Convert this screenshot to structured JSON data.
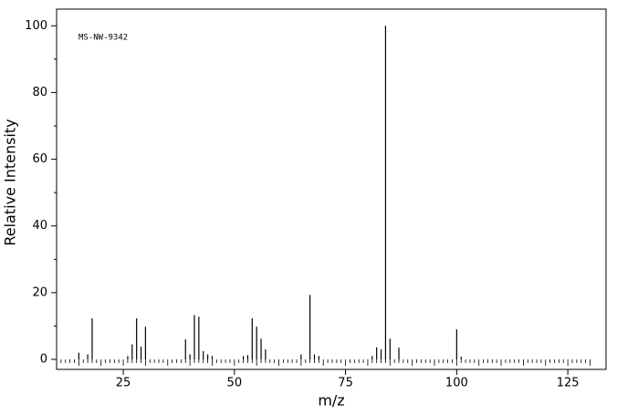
{
  "chart_data": {
    "type": "stem",
    "annotation": "MS-NW-9342",
    "xlabel": "m/z",
    "ylabel": "Relative Intensity",
    "x": [
      15,
      17,
      18,
      26,
      27,
      28,
      29,
      30,
      39,
      40,
      41,
      42,
      43,
      44,
      45,
      52,
      53,
      54,
      55,
      56,
      57,
      65,
      67,
      68,
      69,
      81,
      82,
      83,
      84,
      85,
      87,
      100,
      101
    ],
    "values": [
      2,
      1.5,
      12.3,
      1,
      4.5,
      12.3,
      3.8,
      9.8,
      6,
      1.5,
      13.3,
      12.8,
      2.5,
      1.5,
      1,
      1,
      1.3,
      12.3,
      9.8,
      6.2,
      3,
      1.5,
      19.3,
      1.5,
      1,
      1,
      3.6,
      3,
      100,
      6.2,
      3.5,
      9,
      0.8
    ],
    "color": "#000000",
    "xlim": [
      10,
      133.6
    ],
    "xticks": [
      25,
      50,
      75,
      100,
      125
    ],
    "ylim": [
      -3,
      105
    ],
    "yticks": [
      0,
      20,
      40,
      60,
      80,
      100
    ]
  }
}
